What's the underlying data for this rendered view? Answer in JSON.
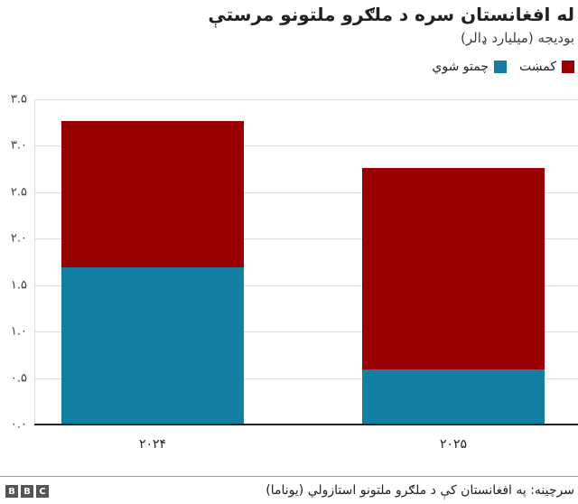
{
  "title": "له افغانستان سره د ملګرو ملتونو مرستې",
  "subtitle": "بودیجه (میلیارد ډالر)",
  "legend": [
    {
      "label": "کمښت",
      "color": "#990000"
    },
    {
      "label": "چمتو شوي",
      "color": "#1380a1"
    }
  ],
  "source": "سرچینه: په افغانستان کې د ملګرو ملتونو استازولي (یوناما)",
  "brand": [
    "B",
    "B",
    "C"
  ],
  "y_ticks": [
    "۰.۰",
    "۰.۵",
    "۱.۰",
    "۱.۵",
    "۲.۰",
    "۲.۵",
    "۳.۰",
    "۳.۵"
  ],
  "x_ticks": [
    "۲۰۲۴",
    "۲۰۲۵"
  ],
  "chart_data": {
    "type": "bar",
    "stacked": true,
    "title": "له افغانستان سره د ملګرو ملتونو مرستې",
    "subtitle": "بودیجه (میلیارد ډالر)",
    "xlabel": "",
    "ylabel": "بودیجه (میلیارد ډالر)",
    "categories": [
      "2024",
      "2025"
    ],
    "series": [
      {
        "name": "چمتو شوي",
        "color": "#1380a1",
        "values": [
          1.69,
          0.59
        ]
      },
      {
        "name": "کمښت",
        "color": "#990000",
        "values": [
          1.58,
          2.17
        ]
      }
    ],
    "totals": [
      3.27,
      2.76
    ],
    "ylim": [
      0,
      3.5
    ],
    "yticks": [
      0,
      0.5,
      1.0,
      1.5,
      2.0,
      2.5,
      3.0,
      3.5
    ],
    "grid": true,
    "legend_position": "top-right",
    "source": "سرچینه: په افغانستان کې د ملګرو ملتونو استازولي (یوناما)"
  }
}
